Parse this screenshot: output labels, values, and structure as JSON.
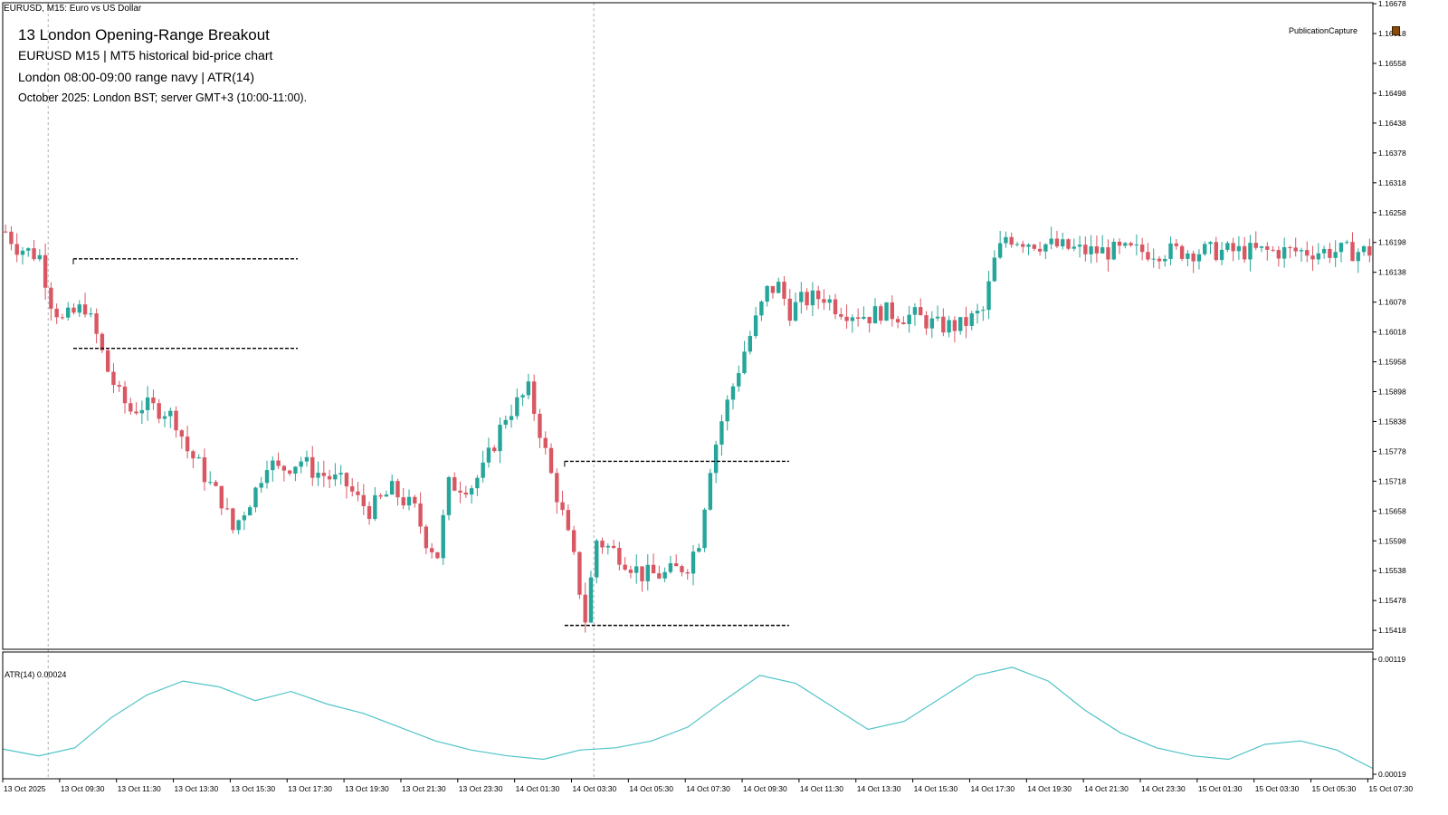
{
  "header": {
    "symbol_line": "EURUSD, M15:  Euro vs US Dollar",
    "title": "13  London Opening-Range Breakout",
    "subtitle1": "EURUSD  M15  |  MT5 historical bid-price chart",
    "subtitle2": "London 08:00-09:00 range navy | ATR(14)",
    "subtitle3": "October 2025: London BST; server GMT+3 (10:00-11:00).",
    "publication_label": "PublicationCapture"
  },
  "atr_label": "ATR(14) 0.00024",
  "colors": {
    "bull": "#26a69a",
    "bear": "#d95763",
    "atr_line": "#4fc3c8",
    "range_lines": "#000000",
    "session_vline": "#b0b0b0"
  },
  "chart_data": [
    {
      "type": "candlestick",
      "title": "",
      "symbol": "EURUSD",
      "timeframe": "M15",
      "ylim": [
        1.1538,
        1.1668
      ],
      "y_ticks": [
        "1.16678",
        "1.16618",
        "1.16558",
        "1.16498",
        "1.16438",
        "1.16378",
        "1.16318",
        "1.16258",
        "1.16198",
        "1.16138",
        "1.16078",
        "1.16018",
        "1.15958",
        "1.15898",
        "1.15838",
        "1.15778",
        "1.15718",
        "1.15658",
        "1.15598",
        "1.15538",
        "1.15478",
        "1.15418"
      ],
      "x_ticks": [
        "13 Oct 2025",
        "13 Oct 09:30",
        "13 Oct 11:30",
        "13 Oct 13:30",
        "13 Oct 15:30",
        "13 Oct 17:30",
        "13 Oct 19:30",
        "13 Oct 21:30",
        "13 Oct 23:30",
        "14 Oct 01:30",
        "14 Oct 03:30",
        "14 Oct 05:30",
        "14 Oct 07:30",
        "14 Oct 09:30",
        "14 Oct 11:30",
        "14 Oct 13:30",
        "14 Oct 15:30",
        "14 Oct 17:30",
        "14 Oct 19:30",
        "14 Oct 21:30",
        "14 Oct 23:30",
        "15 Oct 01:30",
        "15 Oct 03:30",
        "15 Oct 05:30",
        "15 Oct 07:30"
      ],
      "close_path": [
        1.1622,
        1.1619,
        1.1617,
        1.1608,
        1.1604,
        1.1607,
        1.1601,
        1.1594,
        1.1589,
        1.1586,
        1.1587,
        1.1586,
        1.1584,
        1.1578,
        1.1575,
        1.1571,
        1.1568,
        1.1562,
        1.157,
        1.1576,
        1.1574,
        1.1576,
        1.1574,
        1.1573,
        1.1571,
        1.1568,
        1.1566,
        1.157,
        1.1568,
        1.1566,
        1.156,
        1.1557,
        1.1571,
        1.1571,
        1.1574,
        1.1585,
        1.159,
        1.1582,
        1.1573,
        1.1565,
        1.1556,
        1.1544,
        1.156,
        1.1557,
        1.1553,
        1.1553,
        1.1555,
        1.156,
        1.1575,
        1.1584,
        1.1598,
        1.161,
        1.1611,
        1.1606,
        1.1608,
        1.1609,
        1.1607,
        1.1606,
        1.1605,
        1.1606,
        1.1605,
        1.1605,
        1.1603,
        1.1603,
        1.1606,
        1.1616,
        1.1621,
        1.162,
        1.1618
      ],
      "close_path_times": [
        "13 Oct 08:00",
        "13 Oct 08:30",
        "13 Oct 09:30",
        "13 Oct 10:00",
        "13 Oct 10:30",
        "13 Oct 11:30",
        "13 Oct 12:00",
        "13 Oct 12:30",
        "13 Oct 13:00",
        "13 Oct 13:30",
        "13 Oct 14:00",
        "13 Oct 15:00",
        "13 Oct 15:30",
        "13 Oct 16:00",
        "13 Oct 16:30",
        "13 Oct 17:00",
        "13 Oct 17:30",
        "13 Oct 18:00",
        "13 Oct 19:00",
        "13 Oct 19:30",
        "13 Oct 20:00",
        "13 Oct 21:00",
        "13 Oct 21:30",
        "13 Oct 22:00",
        "13 Oct 23:00",
        "13 Oct 23:30",
        "14 Oct 00:00",
        "14 Oct 01:00",
        "14 Oct 01:30",
        "14 Oct 02:00",
        "14 Oct 02:30",
        "14 Oct 03:00",
        "14 Oct 03:30",
        "14 Oct 04:30",
        "14 Oct 05:00",
        "14 Oct 06:00",
        "14 Oct 07:00",
        "14 Oct 07:30",
        "14 Oct 08:00",
        "14 Oct 08:30",
        "14 Oct 09:00",
        "14 Oct 09:30",
        "14 Oct 10:00",
        "14 Oct 11:00",
        "14 Oct 12:00",
        "14 Oct 13:00",
        "14 Oct 14:00",
        "14 Oct 14:30",
        "14 Oct 15:00",
        "14 Oct 15:30",
        "14 Oct 16:30",
        "14 Oct 17:30",
        "14 Oct 18:00",
        "14 Oct 18:30",
        "14 Oct 19:00",
        "14 Oct 20:00",
        "14 Oct 20:30",
        "14 Oct 21:00",
        "14 Oct 22:00",
        "14 Oct 22:30",
        "14 Oct 23:30",
        "15 Oct 00:00",
        "15 Oct 01:00",
        "15 Oct 02:00",
        "15 Oct 03:00",
        "15 Oct 03:30",
        "15 Oct 04:00",
        "15 Oct 05:00",
        "15 Oct 07:30"
      ],
      "opening_ranges": [
        {
          "session": "13 Oct London 08:00-09:00",
          "high": 1.16165,
          "low": 1.15985
        },
        {
          "session": "14 Oct London 08:00-09:00",
          "high": 1.15758,
          "low": 1.15428
        }
      ],
      "session_markers": [
        "13 Oct 10:00",
        "14 Oct 10:00"
      ]
    },
    {
      "type": "line",
      "title": "ATR(14)",
      "series": [
        {
          "name": "ATR(14)",
          "current_value": 0.00024
        }
      ],
      "y_ticks": [
        "0.00119",
        "0.00019"
      ],
      "ylim": [
        0.00019,
        0.00119
      ],
      "values": [
        0.00041,
        0.00035,
        0.00042,
        0.00068,
        0.00088,
        0.001,
        0.00095,
        0.00083,
        0.00091,
        0.0008,
        0.00072,
        0.0006,
        0.00048,
        0.0004,
        0.00035,
        0.00032,
        0.0004,
        0.00042,
        0.00048,
        0.0006,
        0.00083,
        0.00105,
        0.00098,
        0.00078,
        0.00058,
        0.00065,
        0.00085,
        0.00105,
        0.00112,
        0.001,
        0.00075,
        0.00055,
        0.00042,
        0.00035,
        0.00032,
        0.00045,
        0.00048,
        0.0004,
        0.00024
      ]
    }
  ]
}
